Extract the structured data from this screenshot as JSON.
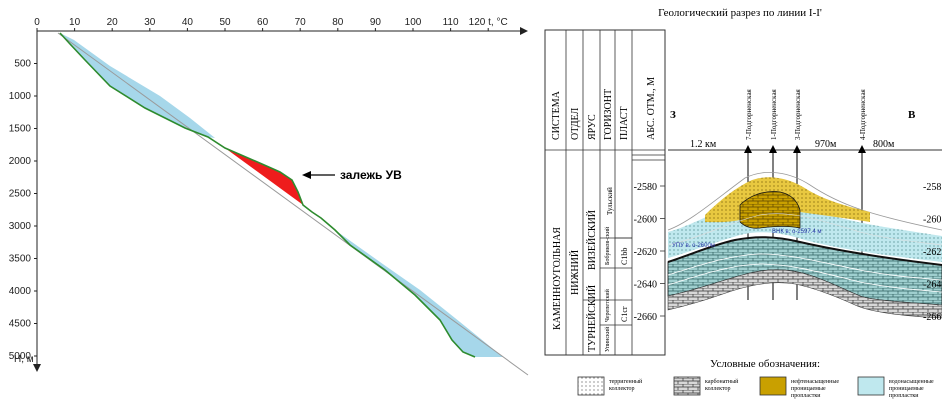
{
  "left_chart": {
    "x_ticks": [
      "0",
      "10",
      "20",
      "30",
      "40",
      "50",
      "60",
      "70",
      "80",
      "90",
      "100",
      "110",
      "120"
    ],
    "x_axis_label": "t, °C",
    "y_ticks": [
      "500",
      "1000",
      "1500",
      "2000",
      "2500",
      "3000",
      "3500",
      "4000",
      "4500",
      "5000"
    ],
    "y_axis_label": "H, м",
    "annotation": "залежь УВ",
    "colors": {
      "deposit": "#ee1c1c",
      "anomaly": "#a6d7ea",
      "curve": "#2e8b2e",
      "gradient": "#9a9a9a"
    }
  },
  "section": {
    "title": "Геологический разрез по линии I-I'",
    "col_headers": [
      "СИСТЕМА",
      "ОТДЕЛ",
      "ЯРУС",
      "ГОРИЗОНТ",
      "ПЛАСТ",
      "АБС. ОТМ., М"
    ],
    "system": "КАМЕННОУГОЛЬНАЯ",
    "series": [
      "НИЖНИЙ"
    ],
    "stages": [
      "ВИЗЕЙСКИЙ",
      "ТУРНЕЙСКИЙ"
    ],
    "horizons": [
      "Тульский",
      "Бобриков-ский",
      "Черепетский",
      "Упинский"
    ],
    "layers": [
      "C1bb",
      "C1cr"
    ],
    "depth_ticks": [
      "-2580",
      "-2600",
      "-2620",
      "-2640",
      "-2660"
    ],
    "right_ticks": [
      "-258",
      "-260",
      "-262",
      "-264",
      "-266"
    ],
    "side_left": "З",
    "side_right": "В",
    "distances": [
      "1.2 км",
      "970м",
      "800м"
    ],
    "wells": [
      "7-Подгорненская",
      "1-Подгорненская",
      "3-Подгорненская",
      "4-Подгорненская"
    ],
    "labels": {
      "upu": "УПУ в. о-2600м",
      "vnk": "ВНК в. о-2597.4 м"
    }
  },
  "legend": {
    "title": "Условные обозначения:",
    "items": [
      {
        "label1": "терригенный",
        "label2": "коллектор",
        "color": "#ffffff"
      },
      {
        "label1": "карбонатный",
        "label2": "коллектор",
        "color": "#cccccc"
      },
      {
        "label1": "нефтенасыщенные",
        "label2": "проницаемые",
        "label3": "пропластки",
        "color": "#c9a000"
      },
      {
        "label1": "водонасыщенные",
        "label2": "проницаемые",
        "label3": "пропластки",
        "color": "#bfe8ee"
      }
    ]
  }
}
